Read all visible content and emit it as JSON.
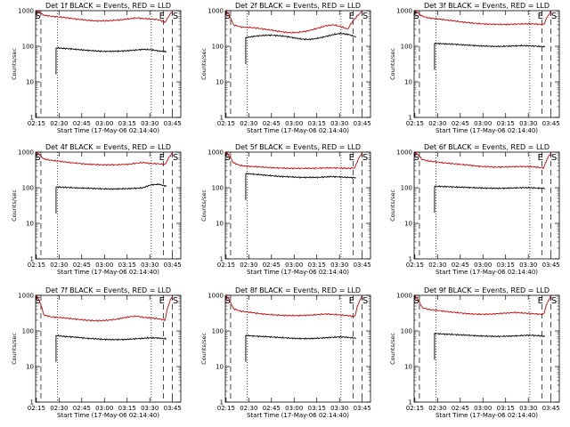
{
  "chart_data": [
    {
      "type": "line",
      "title": "Det 1f BLACK = Events, RED = LLD",
      "ylabel": "Counts/sec",
      "xlabel": "Start Time (17-May-06 02:14:40)",
      "xticks": [
        "02:15",
        "02:30",
        "02:45",
        "03:00",
        "03:15",
        "03:30",
        "03:45"
      ],
      "yticks": [
        "1",
        "10",
        "100",
        "1000"
      ],
      "ylim": [
        1,
        1000
      ],
      "markers": [
        "S",
        "E",
        "S"
      ],
      "series": [
        {
          "name": "Events",
          "color": "#000000",
          "start": "02:28",
          "end": "03:41",
          "values": [
            90,
            87,
            84,
            80,
            77,
            74,
            72,
            72,
            73,
            75,
            78,
            82,
            80,
            74,
            70
          ]
        },
        {
          "name": "LLD",
          "color": "#cc0000",
          "start": "02:15",
          "end": "03:45",
          "values": [
            1000,
            750,
            700,
            670,
            640,
            600,
            570,
            540,
            520,
            515,
            520,
            540,
            560,
            590,
            630,
            600,
            580,
            560,
            470,
            950
          ]
        }
      ]
    },
    {
      "type": "line",
      "title": "Det 2f BLACK = Events, RED = LLD",
      "ylabel": "Counts/sec",
      "xlabel": "Start Time (17-May-06 02:14:40)",
      "xticks": [
        "02:15",
        "02:30",
        "02:45",
        "03:00",
        "03:15",
        "03:30",
        "03:45"
      ],
      "yticks": [
        "1",
        "10",
        "100",
        "1000"
      ],
      "ylim": [
        1,
        1000
      ],
      "markers": [
        "S",
        "E",
        "S"
      ],
      "series": [
        {
          "name": "Events",
          "color": "#000000",
          "start": "02:28",
          "end": "03:41",
          "values": [
            175,
            190,
            200,
            205,
            200,
            190,
            175,
            160,
            155,
            165,
            185,
            210,
            230,
            215,
            180
          ]
        },
        {
          "name": "LLD",
          "color": "#cc0000",
          "start": "02:15",
          "end": "03:45",
          "values": [
            1000,
            400,
            350,
            340,
            330,
            310,
            290,
            270,
            250,
            240,
            245,
            260,
            290,
            330,
            380,
            400,
            360,
            300,
            600,
            950
          ]
        }
      ]
    },
    {
      "type": "line",
      "title": "Det 3f BLACK = Events, RED = LLD",
      "ylabel": "Counts/sec",
      "xlabel": "Start Time (17-May-06 02:14:40)",
      "xticks": [
        "02:15",
        "02:30",
        "02:45",
        "03:00",
        "03:15",
        "03:30",
        "03:45"
      ],
      "yticks": [
        "1",
        "10",
        "100",
        "1000"
      ],
      "ylim": [
        1,
        1000
      ],
      "markers": [
        "S",
        "E",
        "S"
      ],
      "series": [
        {
          "name": "Events",
          "color": "#000000",
          "start": "02:28",
          "end": "03:41",
          "values": [
            120,
            118,
            115,
            112,
            108,
            105,
            102,
            100,
            99,
            100,
            102,
            104,
            103,
            100,
            97
          ]
        },
        {
          "name": "LLD",
          "color": "#cc0000",
          "start": "02:15",
          "end": "03:45",
          "values": [
            1000,
            700,
            620,
            590,
            560,
            530,
            500,
            470,
            450,
            430,
            420,
            415,
            410,
            410,
            420,
            425,
            430,
            420,
            400,
            950
          ]
        }
      ]
    },
    {
      "type": "line",
      "title": "Det 4f BLACK = Events, RED = LLD",
      "ylabel": "Counts/sec",
      "xlabel": "Start Time (17-May-06 02:14:40)",
      "xticks": [
        "02:15",
        "02:30",
        "02:45",
        "03:00",
        "03:15",
        "03:30",
        "03:45"
      ],
      "yticks": [
        "1",
        "10",
        "100",
        "1000"
      ],
      "ylim": [
        1,
        1000
      ],
      "markers": [
        "S",
        "E",
        "S"
      ],
      "series": [
        {
          "name": "Events",
          "color": "#000000",
          "start": "02:28",
          "end": "03:41",
          "values": [
            105,
            103,
            100,
            98,
            97,
            95,
            93,
            92,
            93,
            94,
            96,
            99,
            120,
            125,
            110
          ]
        },
        {
          "name": "LLD",
          "color": "#cc0000",
          "start": "02:15",
          "end": "03:45",
          "values": [
            1000,
            650,
            590,
            560,
            530,
            500,
            480,
            460,
            450,
            440,
            440,
            440,
            450,
            460,
            490,
            510,
            480,
            470,
            450,
            950
          ]
        }
      ]
    },
    {
      "type": "line",
      "title": "Det 5f BLACK = Events, RED = LLD",
      "ylabel": "Counts/sec",
      "xlabel": "Start Time (17-May-06 02:14:40)",
      "xticks": [
        "02:15",
        "02:30",
        "02:45",
        "03:00",
        "03:15",
        "03:30",
        "03:45"
      ],
      "yticks": [
        "1",
        "10",
        "100",
        "1000"
      ],
      "ylim": [
        1,
        1000
      ],
      "markers": [
        "S",
        "E",
        "S"
      ],
      "series": [
        {
          "name": "Events",
          "color": "#000000",
          "start": "02:28",
          "end": "03:41",
          "values": [
            250,
            240,
            230,
            220,
            210,
            205,
            200,
            195,
            195,
            195,
            200,
            205,
            200,
            195,
            190
          ]
        },
        {
          "name": "LLD",
          "color": "#cc0000",
          "start": "02:15",
          "end": "03:45",
          "values": [
            1000,
            500,
            420,
            400,
            390,
            380,
            370,
            360,
            355,
            350,
            350,
            350,
            350,
            355,
            360,
            360,
            355,
            350,
            360,
            950
          ]
        }
      ]
    },
    {
      "type": "line",
      "title": "Det 6f BLACK = Events, RED = LLD",
      "ylabel": "Counts/sec",
      "xlabel": "Start Time (17-May-06 02:14:40)",
      "xticks": [
        "02:15",
        "02:30",
        "02:45",
        "03:00",
        "03:15",
        "03:30",
        "03:45"
      ],
      "yticks": [
        "1",
        "10",
        "100",
        "1000"
      ],
      "ylim": [
        1,
        1000
      ],
      "markers": [
        "S",
        "E",
        "S"
      ],
      "series": [
        {
          "name": "Events",
          "color": "#000000",
          "start": "02:28",
          "end": "03:41",
          "values": [
            110,
            108,
            106,
            104,
            102,
            100,
            98,
            97,
            96,
            97,
            98,
            100,
            100,
            98,
            96
          ]
        },
        {
          "name": "LLD",
          "color": "#cc0000",
          "start": "02:15",
          "end": "03:45",
          "values": [
            1000,
            620,
            560,
            530,
            500,
            480,
            460,
            440,
            420,
            400,
            390,
            380,
            380,
            385,
            390,
            395,
            390,
            380,
            360,
            950
          ]
        }
      ]
    },
    {
      "type": "line",
      "title": "Det 7f BLACK = Events, RED = LLD",
      "ylabel": "Counts/sec",
      "xlabel": "Start Time (17-May-06 02:14:40)",
      "xticks": [
        "02:15",
        "02:30",
        "02:45",
        "03:00",
        "03:15",
        "03:30",
        "03:45"
      ],
      "yticks": [
        "1",
        "10",
        "100",
        "1000"
      ],
      "ylim": [
        1,
        1000
      ],
      "markers": [
        "S",
        "E",
        "S"
      ],
      "series": [
        {
          "name": "Events",
          "color": "#000000",
          "start": "02:28",
          "end": "03:41",
          "values": [
            75,
            70,
            68,
            65,
            62,
            60,
            58,
            57,
            57,
            58,
            60,
            62,
            64,
            63,
            60
          ]
        },
        {
          "name": "LLD",
          "color": "#cc0000",
          "start": "02:15",
          "end": "03:45",
          "values": [
            1000,
            280,
            250,
            240,
            230,
            220,
            210,
            200,
            195,
            195,
            200,
            210,
            230,
            250,
            260,
            240,
            230,
            220,
            200,
            950
          ]
        }
      ]
    },
    {
      "type": "line",
      "title": "Det 8f BLACK = Events, RED = LLD",
      "ylabel": "Counts/sec",
      "xlabel": "Start Time (17-May-06 02:14:40)",
      "xticks": [
        "02:15",
        "02:30",
        "02:45",
        "03:00",
        "03:15",
        "03:30",
        "03:45"
      ],
      "yticks": [
        "1",
        "10",
        "100",
        "1000"
      ],
      "ylim": [
        1,
        1000
      ],
      "markers": [
        "S",
        "E",
        "S"
      ],
      "series": [
        {
          "name": "Events",
          "color": "#000000",
          "start": "02:28",
          "end": "03:41",
          "values": [
            75,
            72,
            70,
            68,
            66,
            64,
            62,
            61,
            61,
            62,
            64,
            66,
            68,
            66,
            62
          ]
        },
        {
          "name": "LLD",
          "color": "#cc0000",
          "start": "02:15",
          "end": "03:45",
          "values": [
            1000,
            420,
            360,
            340,
            320,
            300,
            290,
            280,
            275,
            270,
            270,
            275,
            280,
            290,
            300,
            290,
            280,
            270,
            250,
            950
          ]
        }
      ]
    },
    {
      "type": "line",
      "title": "Det 9f BLACK = Events, RED = LLD",
      "ylabel": "Counts/sec",
      "xlabel": "Start Time (17-May-06 02:14:40)",
      "xticks": [
        "02:15",
        "02:30",
        "02:45",
        "03:00",
        "03:15",
        "03:30",
        "03:45"
      ],
      "yticks": [
        "1",
        "10",
        "100",
        "1000"
      ],
      "ylim": [
        1,
        1000
      ],
      "markers": [
        "S",
        "E",
        "S"
      ],
      "series": [
        {
          "name": "Events",
          "color": "#000000",
          "start": "02:28",
          "end": "03:41",
          "values": [
            85,
            82,
            80,
            78,
            76,
            74,
            72,
            71,
            70,
            71,
            72,
            74,
            76,
            74,
            70
          ]
        },
        {
          "name": "LLD",
          "color": "#cc0000",
          "start": "02:15",
          "end": "03:45",
          "values": [
            1000,
            450,
            400,
            380,
            360,
            340,
            325,
            310,
            300,
            295,
            295,
            300,
            310,
            320,
            330,
            320,
            310,
            300,
            290,
            950
          ]
        }
      ]
    }
  ]
}
